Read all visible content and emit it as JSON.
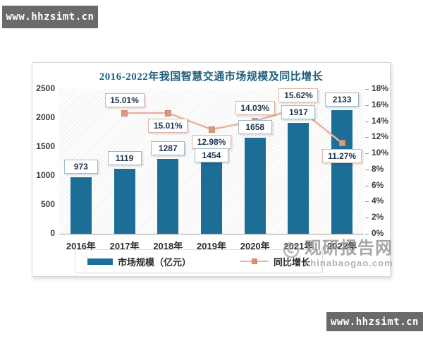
{
  "watermarks": {
    "top_left": "www.hhzsimt.cn",
    "bottom_right": "www.hhzsimt.cn",
    "site_name": "观研报告网",
    "site_domain": "chinabaogao.com"
  },
  "chart_data": {
    "type": "bar",
    "combo": "bar+line",
    "title": "2016-2022年我国智慧交通市场规模及同比增长",
    "categories": [
      "2016年",
      "2017年",
      "2018年",
      "2019年",
      "2020年",
      "2021年",
      "2022年"
    ],
    "series": [
      {
        "name": "市场规模（亿元）",
        "type": "bar",
        "axis": "left",
        "color": "#1d6e96",
        "values": [
          973,
          1119,
          1287,
          1454,
          1658,
          1917,
          2133
        ],
        "value_labels": [
          "973",
          "1119",
          "1287",
          "1454",
          "1658",
          "1917",
          "2133"
        ],
        "label_dy": [
          0,
          0,
          0,
          23,
          0,
          0,
          0
        ]
      },
      {
        "name": "同比增长",
        "type": "line",
        "axis": "right",
        "color": "#e8b2a2",
        "marker_color": "#d99b7e",
        "values": [
          null,
          15.01,
          15.01,
          12.98,
          14.03,
          15.62,
          11.27
        ],
        "point_labels": [
          "",
          "15.01%",
          "15.01%",
          "12.98%",
          "14.03%",
          "15.62%",
          "11.27%"
        ],
        "label_side": [
          null,
          "above",
          "below",
          "below",
          "above",
          "above",
          "below"
        ]
      }
    ],
    "left_axis": {
      "min": 0,
      "max": 2500,
      "ticks": [
        0,
        500,
        1000,
        1500,
        2000,
        2500
      ]
    },
    "right_axis": {
      "min": 0,
      "max": 18,
      "ticks": [
        0,
        2,
        4,
        6,
        8,
        10,
        12,
        14,
        16,
        18
      ],
      "suffix": "%"
    },
    "grid": false,
    "plot_background": "diagonal-hatch",
    "legend_position": "bottom"
  }
}
